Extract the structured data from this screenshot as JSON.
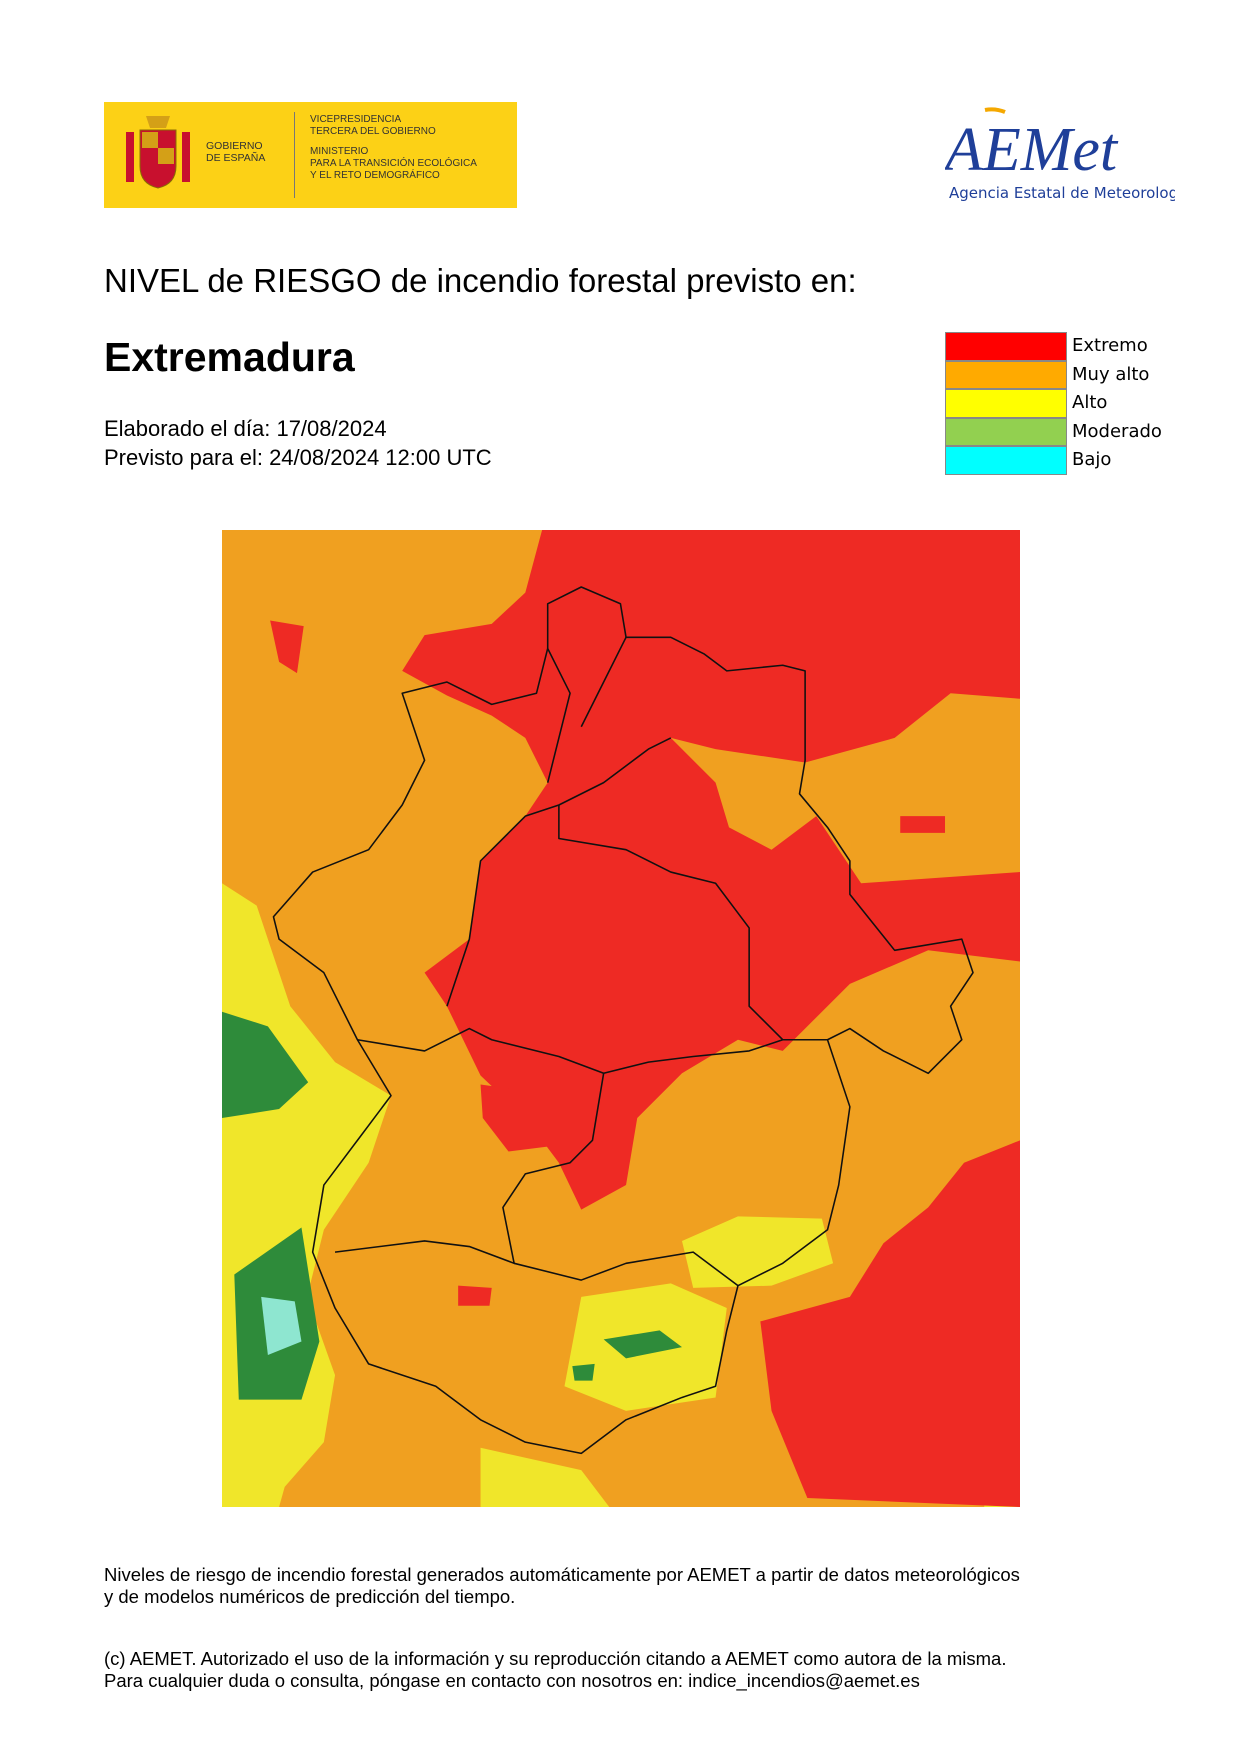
{
  "header": {
    "gov_logo": {
      "name_lines": [
        "GOBIERNO",
        "DE ESPAÑA"
      ],
      "ministry_lines": [
        "VICEPRESIDENCIA",
        "TERCERA DEL GOBIERNO",
        "MINISTERIO",
        "PARA LA TRANSICIÓN ECOLÓGICA",
        "Y EL RETO DEMOGRÁFICO"
      ]
    },
    "aemet_logo": {
      "text": "AEMet",
      "subtitle": "Agencia Estatal de Meteorología"
    }
  },
  "title": "NIVEL de RIESGO de incendio forestal previsto en:",
  "region": "Extremadura",
  "issued": "Elaborado el día: 17/08/2024",
  "valid": "Previsto para el: 24/08/2024 12:00 UTC",
  "legend": [
    {
      "label": "Extremo",
      "color": "#ff0000"
    },
    {
      "label": "Muy alto",
      "color": "#ffaa00"
    },
    {
      "label": "Alto",
      "color": "#ffff00"
    },
    {
      "label": "Moderado",
      "color": "#92d050"
    },
    {
      "label": "Bajo",
      "color": "#00ffff"
    }
  ],
  "footer": [
    "Niveles de riesgo de incendio forestal generados automáticamente por AEMET a partir de datos meteorológicos",
    "y de modelos numéricos de predicción del tiempo.",
    "(c) AEMET. Autorizado el uso de la información y su reproducción citando a AEMET como autora de la misma.",
    "Para cualquier duda o consulta, póngase en contacto con nosotros en: indice_incendios@aemet.es"
  ]
}
